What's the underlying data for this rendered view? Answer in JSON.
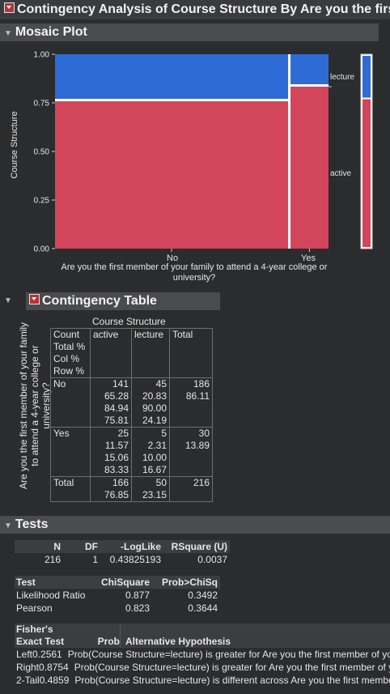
{
  "header": {
    "title": "Contingency Analysis of Course Structure By Are you the first member of your family to attend a 4-year college or university?"
  },
  "mosaic": {
    "section_title": "Mosaic Plot",
    "y_axis_label": "Course Structure",
    "y_ticks": [
      "1.00",
      "0.75",
      "0.50",
      "0.25",
      "0.00"
    ],
    "x_categories": [
      "No",
      "Yes"
    ],
    "x_axis_label_line1": "Are you the first member of your family to attend a 4-year college or",
    "x_axis_label_line2": "university?",
    "legend": [
      "lecture",
      "active"
    ],
    "colors": {
      "active": "#d2455a",
      "lecture": "#2e6bd6"
    }
  },
  "chart_data": {
    "type": "mosaic",
    "categories": [
      "No",
      "Yes"
    ],
    "x_share": [
      0.8611,
      0.1389
    ],
    "series": [
      {
        "name": "active",
        "values": [
          0.7581,
          0.8333
        ]
      },
      {
        "name": "lecture",
        "values": [
          0.2419,
          0.1667
        ]
      }
    ],
    "overall": {
      "active": 0.7685,
      "lecture": 0.2315
    },
    "ylabel": "Course Structure",
    "xlabel": "Are you the first member of your family to attend a 4-year college or university?",
    "ylim": [
      0,
      1
    ]
  },
  "contingency": {
    "section_title": "Contingency Table",
    "col_header": "Course Structure",
    "row_header": "Are you the first member of your family to attend a 4-year college or university?",
    "legend_lines": [
      "Count",
      "Total %",
      "Col %",
      "Row %"
    ],
    "cols": [
      "active",
      "lecture",
      "Total"
    ],
    "rows": [
      {
        "label": "No",
        "active": [
          "141",
          "65.28",
          "84.94",
          "75.81"
        ],
        "lecture": [
          "45",
          "20.83",
          "90.00",
          "24.19"
        ],
        "total": [
          "186",
          "86.11"
        ]
      },
      {
        "label": "Yes",
        "active": [
          "25",
          "11.57",
          "15.06",
          "83.33"
        ],
        "lecture": [
          "5",
          "2.31",
          "10.00",
          "16.67"
        ],
        "total": [
          "30",
          "13.89"
        ]
      }
    ],
    "total_row": {
      "label": "Total",
      "active": [
        "166",
        "76.85"
      ],
      "lecture": [
        "50",
        "23.15"
      ],
      "total": [
        "216"
      ]
    }
  },
  "tests": {
    "section_title": "Tests",
    "summary_headers": [
      "N",
      "DF",
      "-LogLike",
      "RSquare (U)"
    ],
    "summary_values": [
      "216",
      "1",
      "0.43825193",
      "0.0037"
    ],
    "chi_headers": [
      "Test",
      "ChiSquare",
      "Prob>ChiSq"
    ],
    "chi_rows": [
      [
        "Likelihood Ratio",
        "0.877",
        "0.3492"
      ],
      [
        "Pearson",
        "0.823",
        "0.3644"
      ]
    ],
    "fisher_headers": [
      "Fisher's",
      "Exact Test",
      "Prob",
      "Alternative Hypothesis"
    ],
    "fisher_rows": [
      [
        "Left",
        "0.2561",
        "Prob(Course Structure=lecture) is greater for Are you the first member of your family to attend a 4-year college or university?=No than Yes"
      ],
      [
        "Right",
        "0.8754",
        "Prob(Course Structure=lecture) is greater for Are you the first member of your family to attend a 4-year college or university?=Yes than No"
      ],
      [
        "2-Tail",
        "0.4859",
        "Prob(Course Structure=lecture) is different across Are you the first member of your family to attend a 4-year college or university?"
      ]
    ]
  }
}
